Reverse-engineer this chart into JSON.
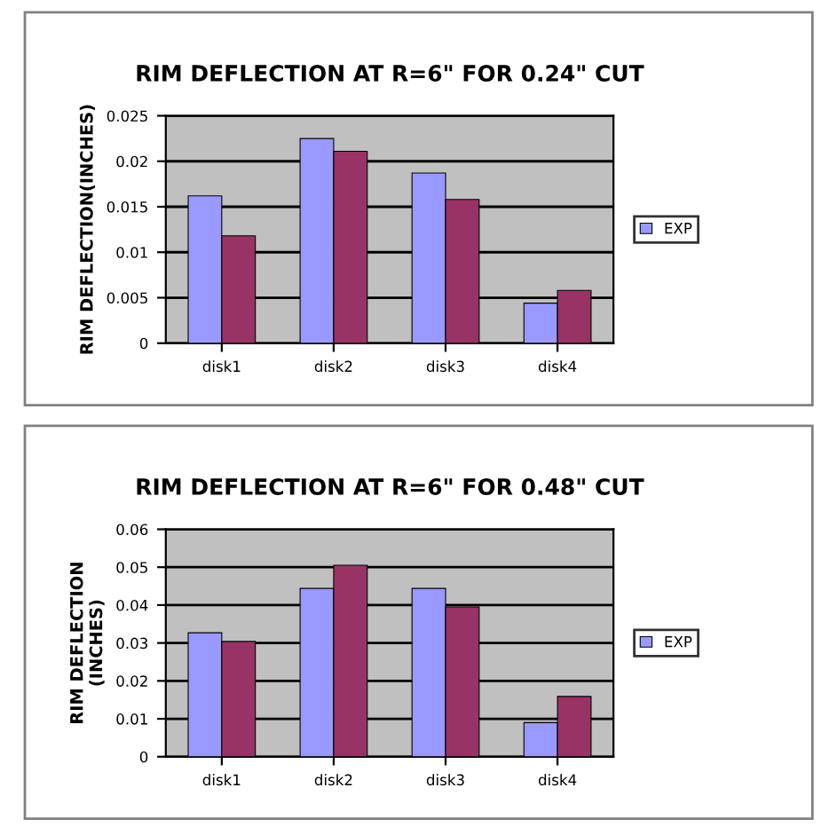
{
  "chart_data": [
    {
      "type": "bar",
      "title": "RIM DEFLECTION AT R=6\" FOR 0.24\" CUT",
      "ylabel": "RIM DEFLECTION(INCHES)",
      "categories": [
        "disk1",
        "disk2",
        "disk3",
        "disk4"
      ],
      "series": [
        {
          "name": "EXP",
          "color": "#9999ff",
          "values": [
            0.0162,
            0.0225,
            0.0187,
            0.0044
          ]
        },
        {
          "color": "#993366",
          "values": [
            0.0118,
            0.0211,
            0.0158,
            0.0058
          ]
        }
      ],
      "ylim": [
        0,
        0.025
      ],
      "yticks": [
        0,
        0.005,
        0.01,
        0.015,
        0.02,
        0.025
      ],
      "grid": "y",
      "legend": "right"
    },
    {
      "type": "bar",
      "title": "RIM DEFLECTION AT R=6\" FOR 0.48\" CUT",
      "ylabel": "RIM DEFLECTION\n(INCHES)",
      "categories": [
        "disk1",
        "disk2",
        "disk3",
        "disk4"
      ],
      "series": [
        {
          "name": "EXP",
          "color": "#9999ff",
          "values": [
            0.0327,
            0.0444,
            0.0444,
            0.009
          ]
        },
        {
          "color": "#993366",
          "values": [
            0.0304,
            0.0505,
            0.0395,
            0.0159
          ]
        }
      ],
      "ylim": [
        0,
        0.06
      ],
      "yticks": [
        0,
        0.01,
        0.02,
        0.03,
        0.04,
        0.05,
        0.06
      ],
      "grid": "y",
      "legend": "right"
    }
  ]
}
